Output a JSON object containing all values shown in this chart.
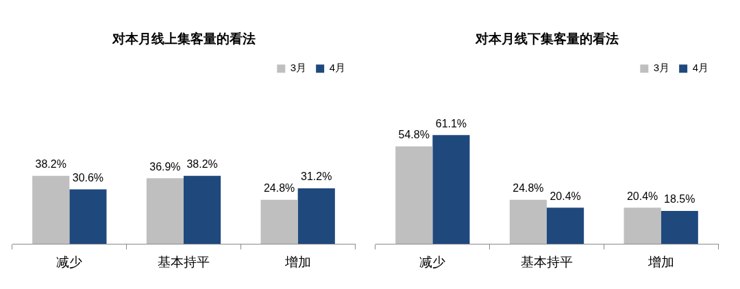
{
  "chart_data": [
    {
      "type": "bar",
      "title": "对本月线上集客量的看法",
      "categories": [
        "减少",
        "基本持平",
        "增加"
      ],
      "legend": "top right",
      "series": [
        {
          "name": "3月",
          "color": "#bfbfbf",
          "values": [
            38.2,
            36.9,
            24.8
          ],
          "value_labels": [
            "38.2%",
            "36.9%",
            "24.8%"
          ]
        },
        {
          "name": "4月",
          "color": "#1f497d",
          "values": [
            30.6,
            38.2,
            31.2
          ],
          "value_labels": [
            "30.6%",
            "38.2%",
            "31.2%"
          ]
        }
      ]
    },
    {
      "type": "bar",
      "title": "对本月线下集客量的看法",
      "categories": [
        "减少",
        "基本持平",
        "增加"
      ],
      "legend": "top right",
      "series": [
        {
          "name": "3月",
          "color": "#bfbfbf",
          "values": [
            54.8,
            24.8,
            20.4
          ],
          "value_labels": [
            "54.8%",
            "24.8%",
            "20.4%"
          ]
        },
        {
          "name": "4月",
          "color": "#1f497d",
          "values": [
            61.1,
            20.4,
            18.5
          ],
          "value_labels": [
            "61.1%",
            "20.4%",
            "18.5%"
          ]
        }
      ]
    }
  ]
}
